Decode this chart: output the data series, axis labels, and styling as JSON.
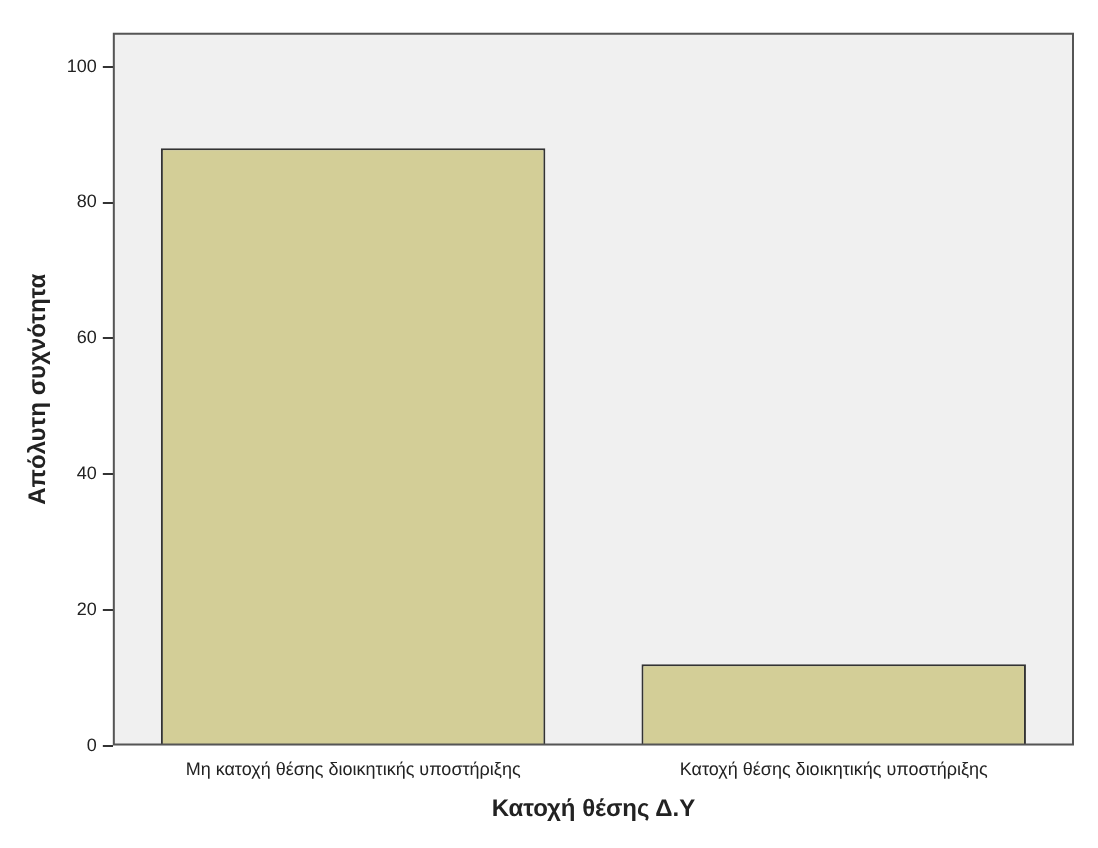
{
  "chart_data": {
    "type": "bar",
    "xlabel": "Κατοχή θέσης Δ.Υ",
    "ylabel": "Απόλυτη συχνότητα",
    "categories": [
      "Μη κατοχή θέσης διοικητικής υποστήριξης",
      "Κατοχή θέσης διοικητικής υποστήριξης"
    ],
    "values": [
      88,
      12
    ],
    "color": "#d3ce97",
    "ylim": [
      0,
      105
    ],
    "yticks": [
      0,
      20,
      40,
      60,
      80,
      100
    ],
    "grid": false,
    "legend": false
  }
}
